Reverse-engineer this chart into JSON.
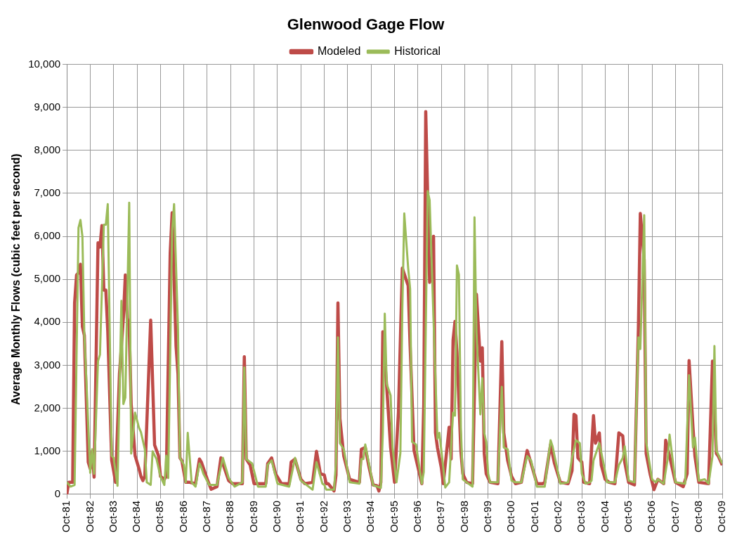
{
  "chart_data": {
    "type": "line",
    "title": "Glenwood Gage Flow",
    "ylabel": "Average Monthly Flows (cubic feet per second)",
    "legend": "top",
    "grid": true,
    "marker": "none",
    "line_style": "solid",
    "xlim": [
      "1981-10",
      "2009-10"
    ],
    "xticks": [
      {
        "value": "1981-10",
        "label": "Oct-81"
      },
      {
        "value": "1982-10",
        "label": "Oct-82"
      },
      {
        "value": "1983-10",
        "label": "Oct-83"
      },
      {
        "value": "1984-10",
        "label": "Oct-84"
      },
      {
        "value": "1985-10",
        "label": "Oct-85"
      },
      {
        "value": "1986-10",
        "label": "Oct-86"
      },
      {
        "value": "1987-10",
        "label": "Oct-87"
      },
      {
        "value": "1988-10",
        "label": "Oct-88"
      },
      {
        "value": "1989-10",
        "label": "Oct-89"
      },
      {
        "value": "1990-10",
        "label": "Oct-90"
      },
      {
        "value": "1991-10",
        "label": "Oct-91"
      },
      {
        "value": "1992-10",
        "label": "Oct-92"
      },
      {
        "value": "1993-10",
        "label": "Oct-93"
      },
      {
        "value": "1994-10",
        "label": "Oct-94"
      },
      {
        "value": "1995-10",
        "label": "Oct-95"
      },
      {
        "value": "1996-10",
        "label": "Oct-96"
      },
      {
        "value": "1997-10",
        "label": "Oct-97"
      },
      {
        "value": "1998-10",
        "label": "Oct-98"
      },
      {
        "value": "1999-10",
        "label": "Oct-99"
      },
      {
        "value": "2000-10",
        "label": "Oct-00"
      },
      {
        "value": "2001-10",
        "label": "Oct-01"
      },
      {
        "value": "2002-10",
        "label": "Oct-02"
      },
      {
        "value": "2003-10",
        "label": "Oct-03"
      },
      {
        "value": "2004-10",
        "label": "Oct-04"
      },
      {
        "value": "2005-10",
        "label": "Oct-05"
      },
      {
        "value": "2006-10",
        "label": "Oct-06"
      },
      {
        "value": "2007-10",
        "label": "Oct-07"
      },
      {
        "value": "2008-10",
        "label": "Oct-08"
      },
      {
        "value": "2009-10",
        "label": "Oct-09"
      }
    ],
    "ylim": [
      0,
      10000
    ],
    "yticks": [
      0,
      {
        "value": 1000,
        "label": "1,000"
      },
      {
        "value": 2000,
        "label": "2,000"
      },
      {
        "value": 3000,
        "label": "3,000"
      },
      {
        "value": 4000,
        "label": "4,000"
      },
      {
        "value": 5000,
        "label": "5,000"
      },
      {
        "value": 6000,
        "label": "6,000"
      },
      {
        "value": 7000,
        "label": "7,000"
      },
      {
        "value": 8000,
        "label": "8,000"
      },
      {
        "value": 9000,
        "label": "9,000"
      },
      {
        "value": 10000,
        "label": "10,000"
      }
    ],
    "series": [
      {
        "name": "Modeled",
        "color": "#be4b48",
        "x": [
          "1981-10",
          "1981-11",
          "1982-01",
          "1982-02",
          "1982-03",
          "1982-04",
          "1982-05",
          "1982-06",
          "1982-07",
          "1982-09",
          "1982-10",
          "1982-11",
          "1982-12",
          "1983-02",
          "1983-03",
          "1983-04",
          "1983-05",
          "1983-06",
          "1983-07",
          "1983-09",
          "1983-10",
          "1983-11",
          "1984-01",
          "1984-03",
          "1984-04",
          "1984-05",
          "1984-06",
          "1984-07",
          "1984-09",
          "1984-11",
          "1984-12",
          "1985-01",
          "1985-02",
          "1985-05",
          "1985-07",
          "1985-09",
          "1985-10",
          "1985-12",
          "1986-01",
          "1986-03",
          "1986-04",
          "1986-06",
          "1986-07",
          "1986-08",
          "1986-09",
          "1986-11",
          "1987-01",
          "1987-04",
          "1987-06",
          "1987-07",
          "1987-10",
          "1987-12",
          "1988-03",
          "1988-05",
          "1988-09",
          "1988-11",
          "1989-04",
          "1989-05",
          "1989-06",
          "1989-08",
          "1989-10",
          "1990-04",
          "1990-05",
          "1990-07",
          "1990-09",
          "1990-12",
          "1991-04",
          "1991-05",
          "1991-07",
          "1991-10",
          "1991-12",
          "1992-04",
          "1992-06",
          "1992-08",
          "1992-10",
          "1992-11",
          "1992-12",
          "1993-03",
          "1993-04",
          "1993-05",
          "1993-06",
          "1993-08",
          "1993-11",
          "1994-04",
          "1994-05",
          "1994-07",
          "1994-09",
          "1994-11",
          "1995-01",
          "1995-02",
          "1995-03",
          "1995-04",
          "1995-06",
          "1995-08",
          "1995-10",
          "1995-12",
          "1996-02",
          "1996-05",
          "1996-06",
          "1996-08",
          "1996-12",
          "1997-01",
          "1997-02",
          "1997-04",
          "1997-05",
          "1997-06",
          "1997-07",
          "1997-08",
          "1997-10",
          "1997-11",
          "1998-02",
          "1998-03",
          "1998-04",
          "1998-05",
          "1998-06",
          "1998-08",
          "1998-09",
          "1998-11",
          "1999-02",
          "1999-04",
          "1999-06",
          "1999-07",
          "1999-08",
          "1999-09",
          "1999-11",
          "2000-03",
          "2000-05",
          "2000-06",
          "2000-08",
          "2000-10",
          "2000-12",
          "2001-03",
          "2001-06",
          "2001-08",
          "2001-11",
          "2002-02",
          "2002-03",
          "2002-06",
          "2002-08",
          "2002-11",
          "2003-03",
          "2003-05",
          "2003-06",
          "2003-07",
          "2003-08",
          "2003-10",
          "2003-11",
          "2004-02",
          "2004-04",
          "2004-05",
          "2004-07",
          "2004-08",
          "2004-10",
          "2004-12",
          "2005-03",
          "2005-05",
          "2005-07",
          "2005-08",
          "2005-10",
          "2006-01",
          "2006-03",
          "2006-04",
          "2006-06",
          "2006-07",
          "2006-09",
          "2006-11",
          "2007-01",
          "2007-04",
          "2007-05",
          "2007-07",
          "2007-10",
          "2008-02",
          "2008-04",
          "2008-05",
          "2008-07",
          "2008-08",
          "2008-10",
          "2009-03",
          "2009-05",
          "2009-07",
          "2009-08",
          "2009-10"
        ],
        "values": [
          0,
          280,
          280,
          4450,
          5100,
          5150,
          5350,
          3900,
          3700,
          750,
          600,
          1000,
          400,
          5850,
          5750,
          6250,
          4750,
          4750,
          3800,
          800,
          550,
          280,
          2800,
          4100,
          5100,
          4100,
          3900,
          2100,
          900,
          600,
          420,
          320,
          420,
          4050,
          1150,
          900,
          420,
          350,
          420,
          5600,
          6550,
          3450,
          2800,
          850,
          780,
          280,
          280,
          250,
          820,
          750,
          350,
          120,
          180,
          850,
          320,
          250,
          250,
          3200,
          820,
          680,
          250,
          250,
          720,
          850,
          480,
          250,
          250,
          750,
          820,
          350,
          250,
          280,
          1000,
          480,
          450,
          250,
          250,
          80,
          450,
          4450,
          1760,
          890,
          350,
          280,
          1050,
          1090,
          620,
          220,
          200,
          80,
          280,
          3780,
          2500,
          1090,
          280,
          1900,
          5260,
          4850,
          3450,
          1020,
          250,
          2100,
          8900,
          4930,
          5260,
          6000,
          1430,
          1090,
          620,
          250,
          1560,
          820,
          3580,
          4020,
          3310,
          1020,
          480,
          280,
          250,
          4650,
          3100,
          3410,
          950,
          480,
          280,
          250,
          3550,
          1430,
          790,
          420,
          250,
          280,
          1020,
          720,
          250,
          250,
          280,
          1160,
          720,
          280,
          250,
          550,
          1860,
          1830,
          850,
          750,
          280,
          250,
          1830,
          1190,
          1430,
          680,
          350,
          280,
          250,
          1430,
          1360,
          750,
          280,
          220,
          3820,
          6530,
          5450,
          950,
          480,
          110,
          350,
          250,
          1260,
          890,
          280,
          180,
          480,
          3110,
          1560,
          890,
          280,
          250,
          3100,
          950,
          890,
          680
        ]
      },
      {
        "name": "Historical",
        "color": "#9bbb59",
        "x": [
          "1981-10",
          "1981-12",
          "1982-02",
          "1982-04",
          "1982-05",
          "1982-06",
          "1982-07",
          "1982-08",
          "1982-10",
          "1982-11",
          "1982-12",
          "1983-02",
          "1983-03",
          "1983-05",
          "1983-06",
          "1983-07",
          "1983-09",
          "1983-10",
          "1983-12",
          "1984-02",
          "1984-03",
          "1984-04",
          "1984-06",
          "1984-07",
          "1984-09",
          "1984-11",
          "1984-12",
          "1985-02",
          "1985-03",
          "1985-05",
          "1985-06",
          "1985-08",
          "1985-10",
          "1985-12",
          "1986-01",
          "1986-02",
          "1986-04",
          "1986-05",
          "1986-07",
          "1986-08",
          "1986-10",
          "1986-11",
          "1986-12",
          "1987-02",
          "1987-04",
          "1987-06",
          "1987-07",
          "1987-08",
          "1987-11",
          "1988-03",
          "1988-06",
          "1988-09",
          "1988-12",
          "1989-04",
          "1989-05",
          "1989-06",
          "1989-09",
          "1989-12",
          "1990-04",
          "1990-05",
          "1990-07",
          "1990-10",
          "1991-04",
          "1991-07",
          "1991-10",
          "1992-04",
          "1992-06",
          "1992-09",
          "1992-10",
          "1992-11",
          "1993-03",
          "1993-04",
          "1993-05",
          "1993-06",
          "1993-08",
          "1993-11",
          "1994-04",
          "1994-05",
          "1994-06",
          "1994-07",
          "1994-11",
          "1995-03",
          "1995-04",
          "1995-05",
          "1995-06",
          "1995-08",
          "1995-09",
          "1995-11",
          "1996-01",
          "1996-02",
          "1996-03",
          "1996-05",
          "1996-06",
          "1996-07",
          "1996-09",
          "1996-12",
          "1997-01",
          "1997-03",
          "1997-04",
          "1997-08",
          "1997-09",
          "1997-11",
          "1997-12",
          "1998-02",
          "1998-04",
          "1998-05",
          "1998-06",
          "1998-07",
          "1998-08",
          "1998-09",
          "1998-11",
          "1999-02",
          "1999-03",
          "1999-04",
          "1999-06",
          "1999-07",
          "1999-08",
          "1999-09",
          "1999-10",
          "1999-11",
          "2000-03",
          "2000-05",
          "2000-06",
          "2000-08",
          "2000-10",
          "2000-12",
          "2001-03",
          "2001-06",
          "2001-08",
          "2001-11",
          "2002-03",
          "2002-06",
          "2002-07",
          "2002-11",
          "2003-03",
          "2003-05",
          "2003-07",
          "2003-09",
          "2003-10",
          "2003-12",
          "2004-02",
          "2004-03",
          "2004-04",
          "2004-07",
          "2004-09",
          "2004-11",
          "2005-03",
          "2005-05",
          "2005-07",
          "2005-08",
          "2005-10",
          "2006-01",
          "2006-03",
          "2006-04",
          "2006-06",
          "2006-07",
          "2006-10",
          "2006-12",
          "2007-01",
          "2007-04",
          "2007-06",
          "2007-07",
          "2007-10",
          "2008-03",
          "2008-05",
          "2008-07",
          "2008-08",
          "2008-10",
          "2009-01",
          "2009-03",
          "2009-05",
          "2009-06",
          "2009-07",
          "2009-10"
        ],
        "values": [
          280,
          180,
          220,
          6200,
          6380,
          6000,
          3700,
          2700,
          500,
          1050,
          480,
          3100,
          3250,
          6270,
          6270,
          6750,
          900,
          850,
          200,
          4500,
          2100,
          2250,
          6780,
          950,
          1900,
          1550,
          1450,
          1050,
          280,
          220,
          1000,
          820,
          420,
          220,
          900,
          380,
          6130,
          6750,
          3850,
          850,
          690,
          280,
          1430,
          280,
          180,
          720,
          620,
          480,
          220,
          220,
          850,
          380,
          180,
          280,
          2950,
          820,
          720,
          180,
          180,
          690,
          790,
          250,
          180,
          850,
          320,
          110,
          750,
          250,
          220,
          110,
          110,
          750,
          3650,
          1190,
          1050,
          280,
          250,
          820,
          820,
          1160,
          220,
          150,
          1430,
          4200,
          2570,
          2300,
          1090,
          280,
          960,
          4300,
          6530,
          5260,
          4780,
          1220,
          1160,
          250,
          520,
          7050,
          6840,
          1290,
          1430,
          620,
          160,
          280,
          1900,
          1830,
          5320,
          5110,
          1560,
          350,
          280,
          180,
          6440,
          3780,
          1860,
          2700,
          1430,
          1220,
          480,
          280,
          280,
          2500,
          1090,
          1050,
          320,
          280,
          280,
          890,
          790,
          180,
          180,
          1260,
          1120,
          250,
          280,
          850,
          1260,
          1190,
          480,
          250,
          280,
          320,
          790,
          1190,
          750,
          280,
          280,
          680,
          850,
          1120,
          320,
          280,
          3650,
          3380,
          6490,
          1220,
          350,
          280,
          350,
          250,
          820,
          1390,
          280,
          250,
          2770,
          1090,
          1320,
          320,
          350,
          250,
          890,
          3450,
          1020,
          720
        ]
      }
    ]
  }
}
